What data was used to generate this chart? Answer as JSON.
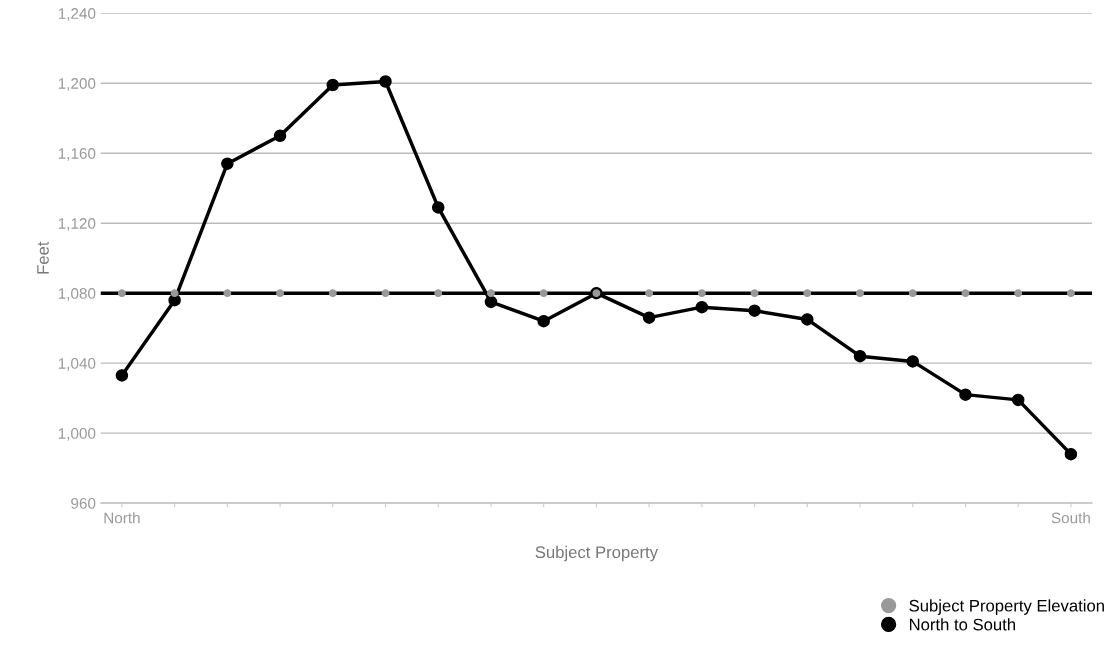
{
  "chart_data": {
    "type": "line",
    "xlabel": "Subject Property",
    "ylabel": "Feet",
    "categories": [
      "North",
      null,
      null,
      null,
      null,
      null,
      null,
      null,
      null,
      null,
      null,
      null,
      null,
      null,
      null,
      null,
      null,
      null,
      "South"
    ],
    "series": [
      {
        "name": "Subject Property Elevation",
        "type": "scatter",
        "color": "#999999",
        "values": [
          1080,
          1080,
          1080,
          1080,
          1080,
          1080,
          1080,
          1080,
          1080,
          1080,
          1080,
          1080,
          1080,
          1080,
          1080,
          1080,
          1080,
          1080,
          1080
        ]
      },
      {
        "name": "North to South",
        "color": "#000000",
        "values": [
          1033,
          1076,
          1154,
          1170,
          1199,
          1201,
          1129,
          1075,
          1064,
          1080,
          1066,
          1072,
          1070,
          1065,
          1044,
          1041,
          1022,
          1019,
          988
        ]
      }
    ],
    "ref_lines": [
      {
        "axis": "y",
        "value": 1080,
        "color": "#000000"
      }
    ],
    "ylim": [
      960,
      1240
    ],
    "yticks": [
      {
        "value": 960,
        "label": "960"
      },
      {
        "value": 1000,
        "label": "1,000"
      },
      {
        "value": 1040,
        "label": "1,040"
      },
      {
        "value": 1080,
        "label": "1,080"
      },
      {
        "value": 1120,
        "label": "1,120"
      },
      {
        "value": 1160,
        "label": "1,160"
      },
      {
        "value": 1200,
        "label": "1,200"
      },
      {
        "value": 1240,
        "label": "1,240"
      }
    ],
    "grid": "y",
    "legend": "bottom right",
    "marker": "circle"
  }
}
